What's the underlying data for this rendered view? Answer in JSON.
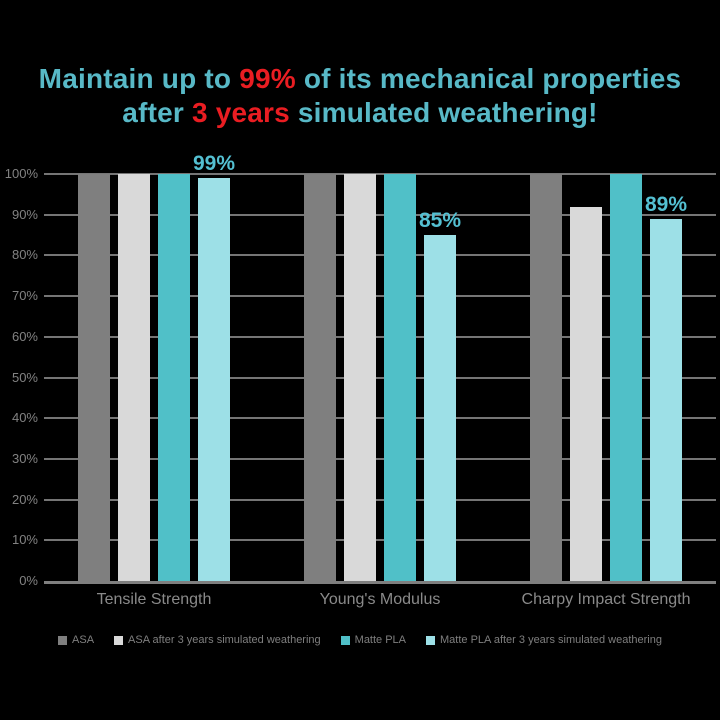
{
  "title": {
    "line1": {
      "pre": "Maintain up to ",
      "highlight": "99%",
      "post": " of its mechanical properties"
    },
    "line2": {
      "pre": "after ",
      "highlight": "3 years",
      "post": " simulated weathering!"
    }
  },
  "chart_data": {
    "type": "bar",
    "categories": [
      "Tensile Strength",
      "Young's Modulus",
      "Charpy Impact Strength"
    ],
    "series": [
      {
        "name": "ASA",
        "color": "#7f7f7f",
        "values": [
          100,
          100,
          100
        ]
      },
      {
        "name": "ASA after 3 years simulated weathering",
        "color": "#d9d9d9",
        "values": [
          100,
          100,
          92
        ]
      },
      {
        "name": "Matte PLA",
        "color": "#50c0c8",
        "values": [
          100,
          100,
          100
        ]
      },
      {
        "name": "Matte PLA after 3 years simulated weathering",
        "color": "#9de0e7",
        "values": [
          99,
          85,
          89
        ],
        "data_labels": [
          "99%",
          "85%",
          "89%"
        ]
      }
    ],
    "yticks": [
      "0%",
      "10%",
      "20%",
      "30%",
      "40%",
      "50%",
      "60%",
      "70%",
      "80%",
      "90%",
      "100%"
    ],
    "ylim": [
      0,
      100
    ],
    "grid": true,
    "legend_position": "bottom"
  },
  "colors": {
    "background": "#000000",
    "title_teal": "#58b9c7",
    "title_red": "#ea1d22",
    "value_label": "#54c0d2",
    "grid": "#757575",
    "axis_text": "#828282",
    "category_text": "#8a8a8a",
    "legend_text": "#7f7f7f",
    "baseline": "#7f7f7f"
  }
}
